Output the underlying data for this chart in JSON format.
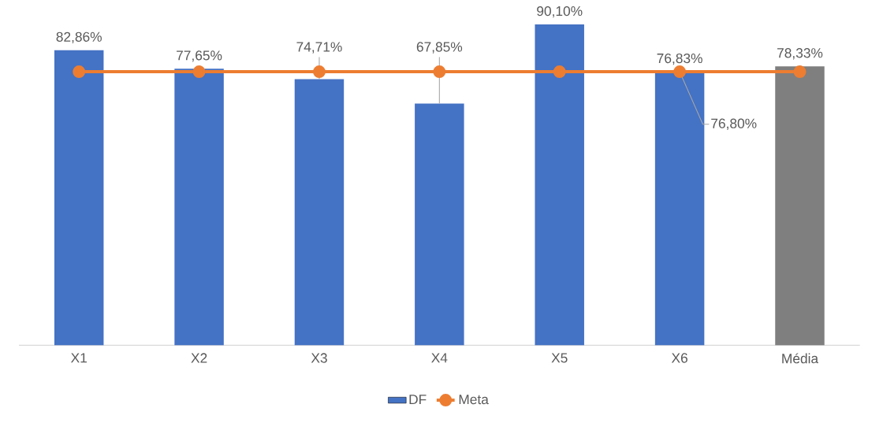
{
  "chart_data": {
    "type": "bar",
    "categories": [
      "X1",
      "X2",
      "X3",
      "X4",
      "X5",
      "X6",
      "Média"
    ],
    "tick_labels": "x",
    "legend": "bottom",
    "grid": false,
    "series": [
      {
        "name": "DF",
        "color": "#4472c4",
        "colors": [
          "#4472c4",
          "#4472c4",
          "#4472c4",
          "#4472c4",
          "#4472c4",
          "#4472c4",
          "#7f7f7f"
        ],
        "values": [
          82.86,
          77.65,
          74.71,
          67.85,
          90.1,
          76.83,
          78.33
        ],
        "value_labels": [
          "82,86%",
          "77,65%",
          "74,71%",
          "67,85%",
          "90,10%",
          "76,83%",
          "78,33%"
        ]
      },
      {
        "name": "Meta",
        "type": "line",
        "color": "#ed7d31",
        "marker": "circle",
        "values": [
          76.8,
          76.8,
          76.8,
          76.8,
          76.8,
          76.8,
          76.8
        ],
        "value_labels": [
          null,
          null,
          null,
          null,
          null,
          "76,80%",
          null
        ]
      }
    ]
  }
}
